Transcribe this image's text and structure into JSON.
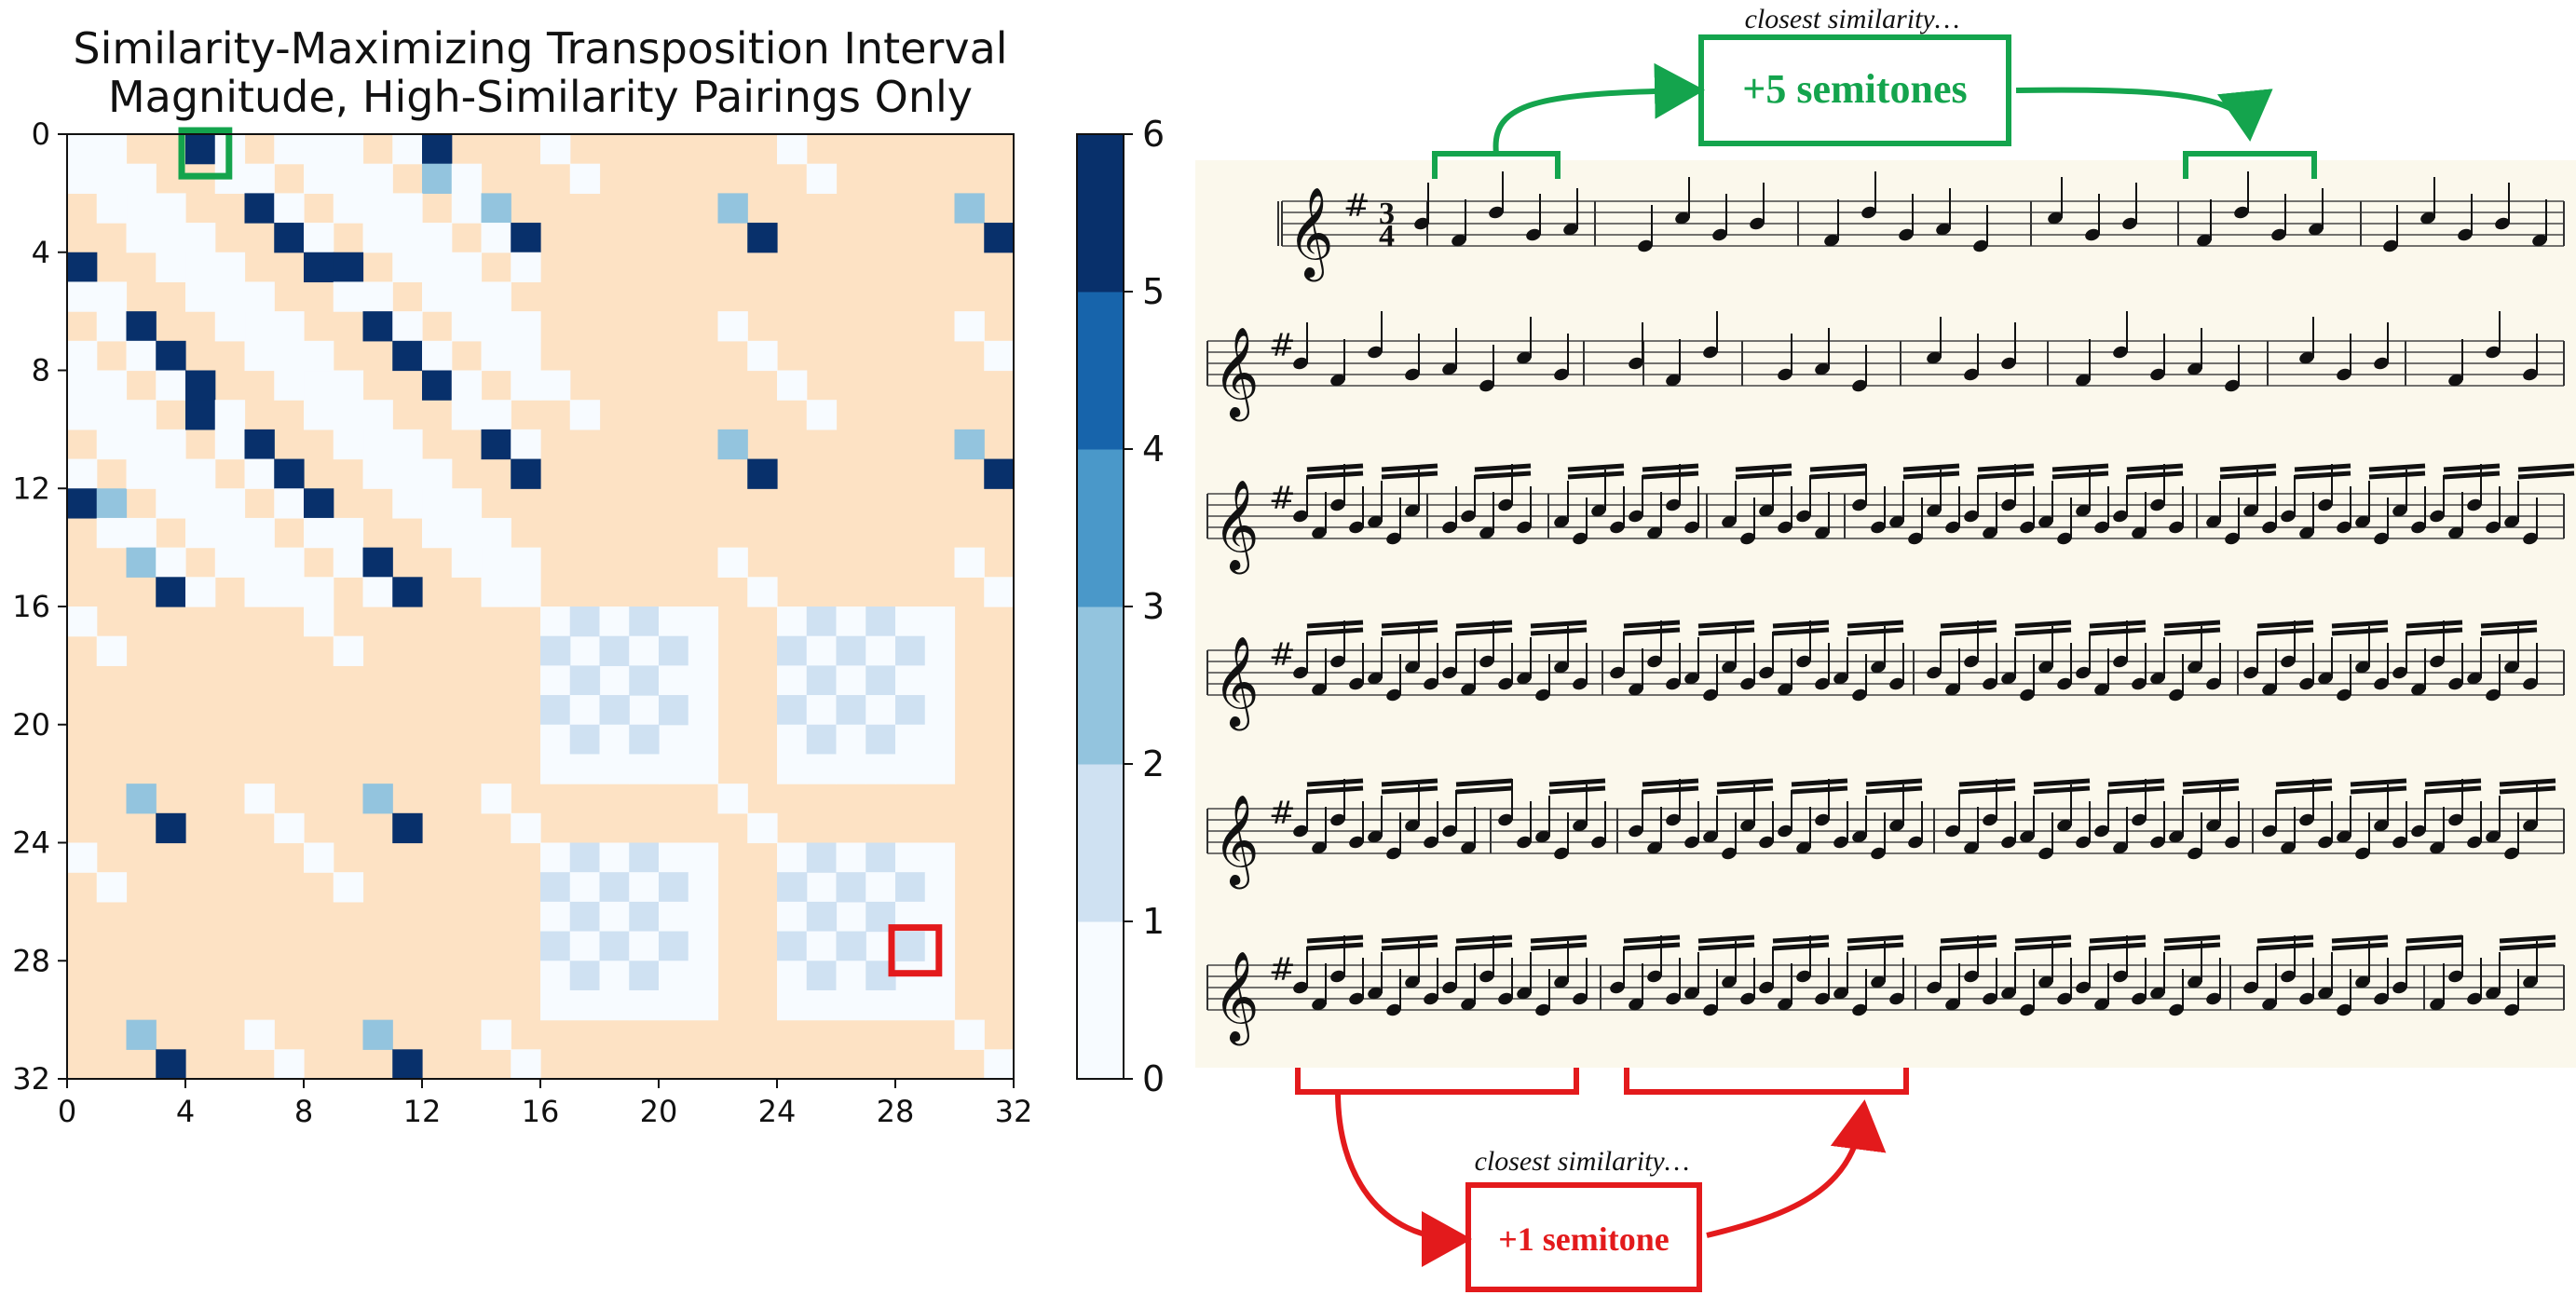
{
  "chart_data": {
    "type": "heatmap",
    "title": [
      "Similarity-Maximizing Transposition Interval",
      "Magnitude, High-Similarity Pairings Only"
    ],
    "size": 32,
    "xticks": [
      "0",
      "4",
      "8",
      "12",
      "16",
      "20",
      "24",
      "28",
      "32"
    ],
    "yticks": [
      "0",
      "4",
      "8",
      "12",
      "16",
      "20",
      "24",
      "28",
      "32"
    ],
    "colorbar": {
      "ticks": [
        "0",
        "1",
        "2",
        "3",
        "4",
        "5",
        "6"
      ],
      "range": [
        0,
        6
      ]
    },
    "empty_color": "#fde2c4",
    "bin_colors": [
      "#f7fbff",
      "#cfe1f2",
      "#93c4de",
      "#4a98c9",
      "#1764ab",
      "#08306b"
    ],
    "highlights": [
      {
        "row": 0,
        "col": 4,
        "color": "#14a44d"
      },
      {
        "row": 27,
        "col": 28,
        "color": "#e31a1c"
      }
    ]
  },
  "annotations": {
    "top": {
      "caption": "closest similarity…",
      "label": "+5 semitones",
      "color": "#14a44d"
    },
    "bottom": {
      "caption": "closest similarity…",
      "label": "+1 semitone",
      "color": "#e31a1c"
    }
  },
  "score": {
    "time_signature": [
      "3",
      "4"
    ],
    "key_signature": "#",
    "paper_color": "#fbf8ec"
  }
}
